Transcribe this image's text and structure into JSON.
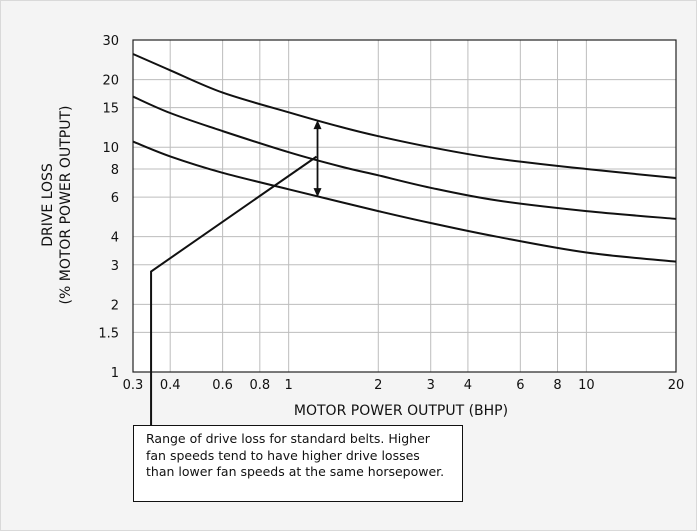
{
  "chart_data": {
    "type": "line",
    "title": "",
    "xlabel": "MOTOR POWER OUTPUT (BHP)",
    "ylabel": [
      "DRIVE LOSS",
      "(% MOTOR POWER OUTPUT)"
    ],
    "x_scale": "log",
    "y_scale": "log",
    "xlim": [
      0.3,
      20
    ],
    "ylim": [
      1,
      30
    ],
    "x_ticks": [
      0.3,
      0.4,
      0.6,
      0.8,
      1,
      2,
      3,
      4,
      6,
      8,
      10,
      20
    ],
    "x_tick_labels": [
      "0.3",
      "0.4",
      "0.6",
      "0.8",
      "1",
      "2",
      "3",
      "4",
      "6",
      "8",
      "10",
      "20"
    ],
    "y_ticks": [
      1,
      1.5,
      2,
      3,
      4,
      6,
      8,
      10,
      15,
      20,
      30
    ],
    "y_tick_labels": [
      "1",
      "1.5",
      "2",
      "3",
      "4",
      "6",
      "8",
      "10",
      "15",
      "20",
      "30"
    ],
    "grid": true,
    "series": [
      {
        "x": [
          0.3,
          0.4,
          0.6,
          1,
          1.5,
          2,
          3,
          5,
          10,
          20
        ],
        "values": [
          26,
          22,
          17.5,
          14.3,
          12.3,
          11.2,
          10,
          8.9,
          8,
          7.3
        ]
      },
      {
        "x": [
          0.3,
          0.4,
          0.6,
          1,
          1.5,
          2,
          3,
          5,
          10,
          20
        ],
        "values": [
          16.8,
          14.2,
          11.8,
          9.5,
          8.2,
          7.5,
          6.6,
          5.8,
          5.2,
          4.8
        ]
      },
      {
        "x": [
          0.3,
          0.4,
          0.6,
          1,
          1.5,
          2,
          3,
          5,
          10,
          20
        ],
        "values": [
          10.6,
          9.1,
          7.7,
          6.5,
          5.7,
          5.2,
          4.6,
          4,
          3.4,
          3.1
        ]
      }
    ],
    "range_arrow": {
      "x": 1.25,
      "low": 6,
      "high": 13.2
    },
    "annotation": "Range of drive loss for standard belts. Higher fan speeds tend to have higher drive losses than lower fan speeds at the same horsepower."
  }
}
